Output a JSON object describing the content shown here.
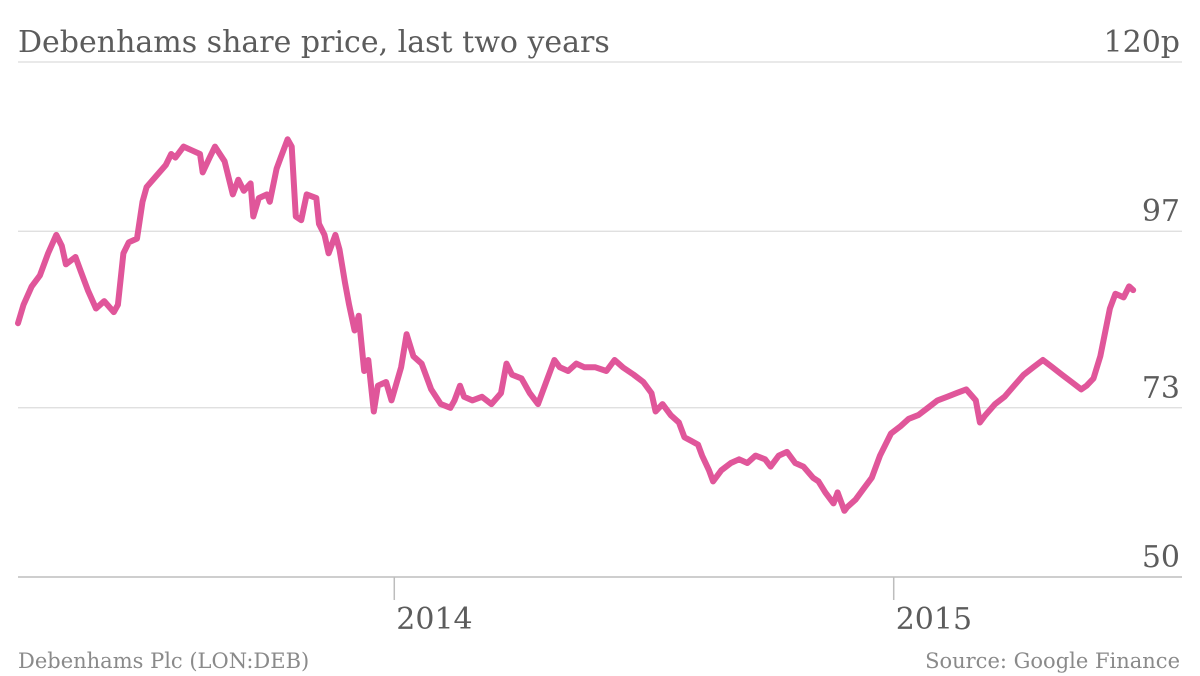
{
  "chart_data": {
    "type": "line",
    "title": "Debenhams share price, last two years",
    "footer_left": "Debenhams Plc (LON:DEB)",
    "footer_right": "Source: Google Finance",
    "y_ticks": [
      {
        "value": 120,
        "label": "120p"
      },
      {
        "value": 97,
        "label": "97"
      },
      {
        "value": 73,
        "label": "73"
      },
      {
        "value": 50,
        "label": "50"
      }
    ],
    "x_ticks": [
      {
        "value": "2014-01-01",
        "label": "2014"
      },
      {
        "value": "2015-01-01",
        "label": "2015"
      }
    ],
    "ylim": [
      50,
      120
    ],
    "xlim": [
      "2013-04-01",
      "2015-06-30"
    ],
    "line_color": "#e0569a",
    "grid": true,
    "series": [
      {
        "points": [
          [
            "2013-04-01",
            84.5
          ],
          [
            "2013-04-05",
            87.0
          ],
          [
            "2013-04-11",
            89.5
          ],
          [
            "2013-04-17",
            91.0
          ],
          [
            "2013-04-23",
            94.0
          ],
          [
            "2013-04-29",
            96.5
          ],
          [
            "2013-05-03",
            95.0
          ],
          [
            "2013-05-06",
            92.5
          ],
          [
            "2013-05-13",
            93.5
          ],
          [
            "2013-05-17",
            91.5
          ],
          [
            "2013-05-22",
            89.0
          ],
          [
            "2013-05-28",
            86.5
          ],
          [
            "2013-06-03",
            87.5
          ],
          [
            "2013-06-10",
            86.0
          ],
          [
            "2013-06-13",
            87.0
          ],
          [
            "2013-06-17",
            94.0
          ],
          [
            "2013-06-21",
            95.5
          ],
          [
            "2013-06-27",
            96.0
          ],
          [
            "2013-07-01",
            101.0
          ],
          [
            "2013-07-04",
            103.0
          ],
          [
            "2013-07-11",
            104.5
          ],
          [
            "2013-07-18",
            106.0
          ],
          [
            "2013-07-22",
            107.5
          ],
          [
            "2013-07-25",
            107.0
          ],
          [
            "2013-07-31",
            108.5
          ],
          [
            "2013-08-06",
            108.0
          ],
          [
            "2013-08-12",
            107.5
          ],
          [
            "2013-08-14",
            105.0
          ],
          [
            "2013-08-19",
            107.0
          ],
          [
            "2013-08-23",
            108.5
          ],
          [
            "2013-08-30",
            106.5
          ],
          [
            "2013-09-05",
            102.0
          ],
          [
            "2013-09-09",
            104.0
          ],
          [
            "2013-09-13",
            102.5
          ],
          [
            "2013-09-18",
            103.5
          ],
          [
            "2013-09-20",
            99.0
          ],
          [
            "2013-09-24",
            101.5
          ],
          [
            "2013-09-30",
            102.0
          ],
          [
            "2013-10-02",
            101.0
          ],
          [
            "2013-10-07",
            105.5
          ],
          [
            "2013-10-10",
            107.0
          ],
          [
            "2013-10-15",
            109.5
          ],
          [
            "2013-10-18",
            108.5
          ],
          [
            "2013-10-21",
            99.0
          ],
          [
            "2013-10-25",
            98.5
          ],
          [
            "2013-10-29",
            102.0
          ],
          [
            "2013-11-05",
            101.5
          ],
          [
            "2013-11-07",
            98.0
          ],
          [
            "2013-11-11",
            96.5
          ],
          [
            "2013-11-14",
            94.0
          ],
          [
            "2013-11-19",
            96.5
          ],
          [
            "2013-11-22",
            94.5
          ],
          [
            "2013-11-26",
            90.0
          ],
          [
            "2013-11-29",
            87.0
          ],
          [
            "2013-12-03",
            83.5
          ],
          [
            "2013-12-06",
            85.5
          ],
          [
            "2013-12-10",
            78.0
          ],
          [
            "2013-12-13",
            79.5
          ],
          [
            "2013-12-17",
            72.5
          ],
          [
            "2013-12-20",
            76.0
          ],
          [
            "2013-12-26",
            76.5
          ],
          [
            "2013-12-30",
            74.0
          ],
          [
            "2014-01-06",
            78.5
          ],
          [
            "2014-01-10",
            83.0
          ],
          [
            "2014-01-15",
            80.0
          ],
          [
            "2014-01-21",
            79.0
          ],
          [
            "2014-01-28",
            75.5
          ],
          [
            "2014-02-04",
            73.5
          ],
          [
            "2014-02-11",
            73.0
          ],
          [
            "2014-02-14",
            74.0
          ],
          [
            "2014-02-18",
            76.0
          ],
          [
            "2014-02-21",
            74.5
          ],
          [
            "2014-02-27",
            74.0
          ],
          [
            "2014-03-06",
            74.5
          ],
          [
            "2014-03-13",
            73.5
          ],
          [
            "2014-03-20",
            75.0
          ],
          [
            "2014-03-24",
            79.0
          ],
          [
            "2014-03-28",
            77.5
          ],
          [
            "2014-04-04",
            77.0
          ],
          [
            "2014-04-10",
            75.0
          ],
          [
            "2014-04-16",
            73.5
          ],
          [
            "2014-04-23",
            77.0
          ],
          [
            "2014-04-28",
            79.5
          ],
          [
            "2014-05-02",
            78.5
          ],
          [
            "2014-05-08",
            78.0
          ],
          [
            "2014-05-14",
            79.0
          ],
          [
            "2014-05-20",
            78.5
          ],
          [
            "2014-05-28",
            78.5
          ],
          [
            "2014-06-05",
            78.0
          ],
          [
            "2014-06-11",
            79.5
          ],
          [
            "2014-06-17",
            78.5
          ],
          [
            "2014-06-25",
            77.5
          ],
          [
            "2014-07-02",
            76.5
          ],
          [
            "2014-07-08",
            75.0
          ],
          [
            "2014-07-11",
            72.5
          ],
          [
            "2014-07-16",
            73.5
          ],
          [
            "2014-07-22",
            72.0
          ],
          [
            "2014-07-28",
            71.0
          ],
          [
            "2014-08-01",
            69.0
          ],
          [
            "2014-08-06",
            68.5
          ],
          [
            "2014-08-11",
            68.0
          ],
          [
            "2014-08-14",
            66.5
          ],
          [
            "2014-08-19",
            64.5
          ],
          [
            "2014-08-22",
            63.0
          ],
          [
            "2014-08-28",
            64.5
          ],
          [
            "2014-09-04",
            65.5
          ],
          [
            "2014-09-10",
            66.0
          ],
          [
            "2014-09-16",
            65.5
          ],
          [
            "2014-09-22",
            66.5
          ],
          [
            "2014-09-29",
            66.0
          ],
          [
            "2014-10-03",
            65.0
          ],
          [
            "2014-10-09",
            66.5
          ],
          [
            "2014-10-15",
            67.0
          ],
          [
            "2014-10-21",
            65.5
          ],
          [
            "2014-10-27",
            65.0
          ],
          [
            "2014-11-03",
            63.5
          ],
          [
            "2014-11-07",
            63.0
          ],
          [
            "2014-11-12",
            61.5
          ],
          [
            "2014-11-18",
            60.0
          ],
          [
            "2014-11-21",
            61.5
          ],
          [
            "2014-11-26",
            59.0
          ],
          [
            "2014-11-28",
            59.5
          ],
          [
            "2014-12-04",
            60.5
          ],
          [
            "2014-12-10",
            62.0
          ],
          [
            "2014-12-16",
            63.5
          ],
          [
            "2014-12-22",
            66.5
          ],
          [
            "2014-12-30",
            69.5
          ],
          [
            "2015-01-06",
            70.5
          ],
          [
            "2015-01-12",
            71.5
          ],
          [
            "2015-01-19",
            72.0
          ],
          [
            "2015-01-26",
            73.0
          ],
          [
            "2015-02-02",
            74.0
          ],
          [
            "2015-02-09",
            74.5
          ],
          [
            "2015-02-16",
            75.0
          ],
          [
            "2015-02-23",
            75.5
          ],
          [
            "2015-03-02",
            74.0
          ],
          [
            "2015-03-05",
            71.0
          ],
          [
            "2015-03-09",
            72.0
          ],
          [
            "2015-03-16",
            73.5
          ],
          [
            "2015-03-23",
            74.5
          ],
          [
            "2015-03-30",
            76.0
          ],
          [
            "2015-04-06",
            77.5
          ],
          [
            "2015-04-13",
            78.5
          ],
          [
            "2015-04-20",
            79.5
          ],
          [
            "2015-04-27",
            78.5
          ],
          [
            "2015-05-04",
            77.5
          ],
          [
            "2015-05-11",
            76.5
          ],
          [
            "2015-05-18",
            75.5
          ],
          [
            "2015-05-22",
            76.0
          ],
          [
            "2015-05-27",
            77.0
          ],
          [
            "2015-06-01",
            80.0
          ],
          [
            "2015-06-08",
            86.5
          ],
          [
            "2015-06-12",
            88.5
          ],
          [
            "2015-06-18",
            88.0
          ],
          [
            "2015-06-22",
            89.5
          ],
          [
            "2015-06-25",
            89.0
          ]
        ]
      }
    ]
  }
}
